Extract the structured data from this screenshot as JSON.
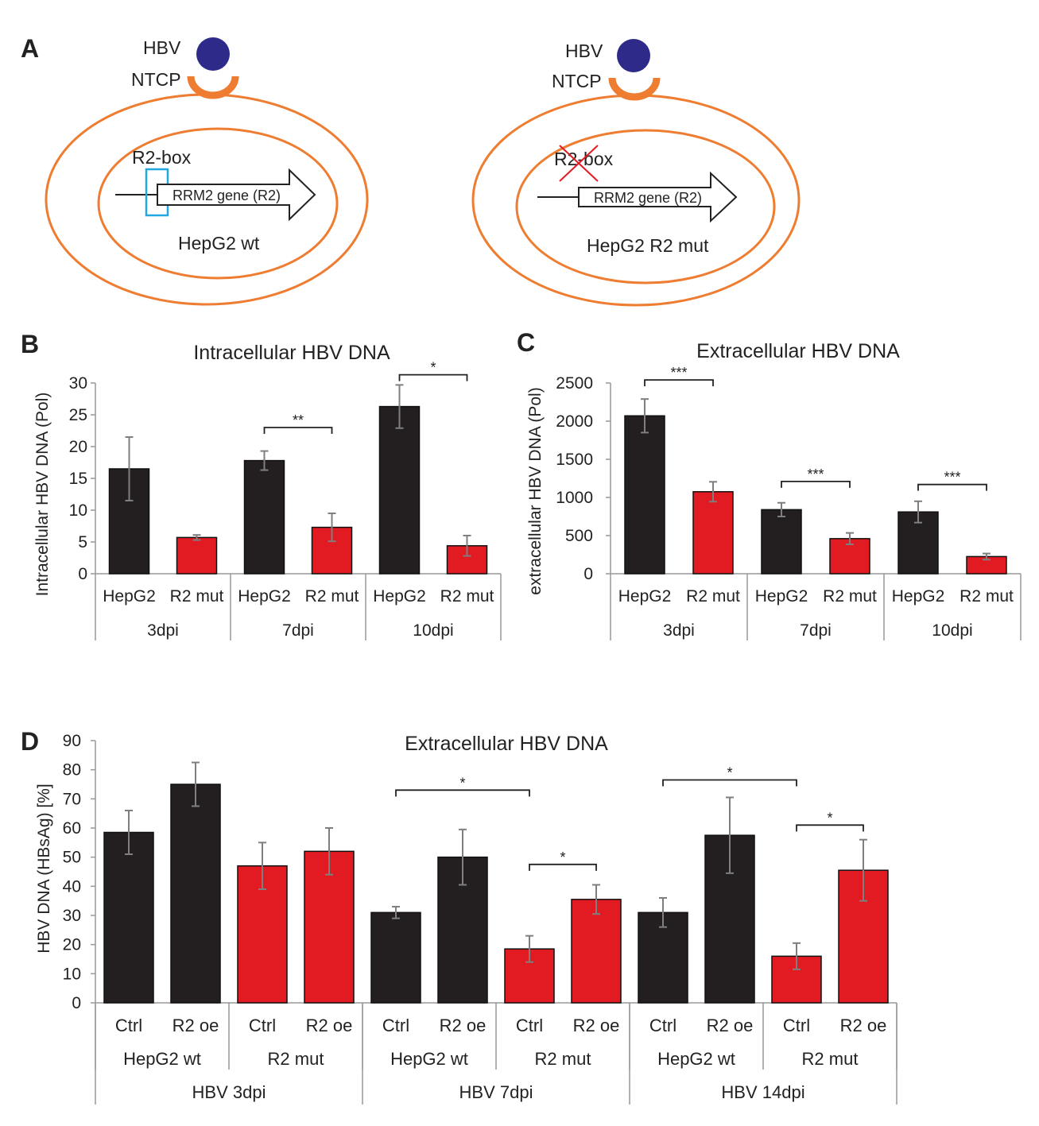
{
  "panel_a": {
    "letter": "A",
    "cells": [
      {
        "hbv": "HBV",
        "ntcp": "NTCP",
        "box": "R2-box",
        "gene": "RRM2 gene (R2)",
        "name": "HepG2 wt"
      },
      {
        "hbv": "HBV",
        "ntcp": "NTCP",
        "box": "R2-box",
        "gene": "RRM2 gene (R2)",
        "name": "HepG2 R2 mut"
      }
    ]
  },
  "colors": {
    "wt": "#231f20",
    "mut": "#e21b23",
    "membrane": "#ee7d31",
    "hbv": "#2e2a8a",
    "box": "#22a8e0",
    "cross": "#e21b23",
    "error": "#7f7f7f"
  },
  "chart_data": [
    {
      "id": "B",
      "letter": "B",
      "type": "bar",
      "title": "Intracellular HBV DNA",
      "ylabel": "Intracellular HBV DNA (Pol)",
      "ylim": [
        0,
        30
      ],
      "yticks": [
        0,
        5,
        10,
        15,
        20,
        25,
        30
      ],
      "bars": [
        {
          "label": "HepG2",
          "value": 16.5,
          "err": 5,
          "color": "wt"
        },
        {
          "label": "R2 mut",
          "value": 5.7,
          "err": 0.4,
          "color": "mut"
        },
        {
          "label": "HepG2",
          "value": 17.8,
          "err": 1.5,
          "color": "wt"
        },
        {
          "label": "R2 mut",
          "value": 7.3,
          "err": 2.2,
          "color": "mut"
        },
        {
          "label": "HepG2",
          "value": 26.3,
          "err": 3.4,
          "color": "wt"
        },
        {
          "label": "R2 mut",
          "value": 4.4,
          "err": 1.6,
          "color": "mut"
        }
      ],
      "groups": [
        {
          "label": "3dpi",
          "bars": [
            0,
            1
          ]
        },
        {
          "label": "7dpi",
          "bars": [
            2,
            3
          ]
        },
        {
          "label": "10dpi",
          "bars": [
            4,
            5
          ]
        }
      ],
      "significance": [
        {
          "from": 2,
          "to": 3,
          "y": 23,
          "text": "**"
        },
        {
          "from": 4,
          "to": 5,
          "y": 31.3,
          "text": "*"
        }
      ]
    },
    {
      "id": "C",
      "letter": "C",
      "type": "bar",
      "title": "Extracellular HBV DNA",
      "ylabel": "extracellular HBV DNA (Pol)",
      "ylim": [
        0,
        2500
      ],
      "yticks": [
        0,
        500,
        1000,
        1500,
        2000,
        2500
      ],
      "bars": [
        {
          "label": "HepG2",
          "value": 2070,
          "err": 220,
          "color": "wt"
        },
        {
          "label": "R2 mut",
          "value": 1075,
          "err": 130,
          "color": "mut"
        },
        {
          "label": "HepG2",
          "value": 840,
          "err": 90,
          "color": "wt"
        },
        {
          "label": "R2 mut",
          "value": 460,
          "err": 75,
          "color": "mut"
        },
        {
          "label": "HepG2",
          "value": 810,
          "err": 140,
          "color": "wt"
        },
        {
          "label": "R2 mut",
          "value": 225,
          "err": 40,
          "color": "mut"
        }
      ],
      "groups": [
        {
          "label": "3dpi",
          "bars": [
            0,
            1
          ]
        },
        {
          "label": "7dpi",
          "bars": [
            2,
            3
          ]
        },
        {
          "label": "10dpi",
          "bars": [
            4,
            5
          ]
        }
      ],
      "significance": [
        {
          "from": 0,
          "to": 1,
          "y": 2540,
          "text": "***"
        },
        {
          "from": 2,
          "to": 3,
          "y": 1210,
          "text": "***"
        },
        {
          "from": 4,
          "to": 5,
          "y": 1170,
          "text": "***"
        }
      ]
    },
    {
      "id": "D",
      "letter": "D",
      "type": "bar",
      "title": "Extracellular HBV DNA",
      "ylabel": "HBV DNA (HBsAg) [%]",
      "ylim": [
        0,
        90
      ],
      "yticks": [
        0,
        10,
        20,
        30,
        40,
        50,
        60,
        70,
        80,
        90
      ],
      "bars": [
        {
          "label": "Ctrl",
          "value": 58.5,
          "err": 7.5,
          "color": "wt"
        },
        {
          "label": "R2 oe",
          "value": 75,
          "err": 7.5,
          "color": "wt"
        },
        {
          "label": "Ctrl",
          "value": 47,
          "err": 8,
          "color": "mut"
        },
        {
          "label": "R2 oe",
          "value": 52,
          "err": 8,
          "color": "mut"
        },
        {
          "label": "Ctrl",
          "value": 31,
          "err": 2,
          "color": "wt"
        },
        {
          "label": "R2 oe",
          "value": 50,
          "err": 9.5,
          "color": "wt"
        },
        {
          "label": "Ctrl",
          "value": 18.5,
          "err": 4.5,
          "color": "mut"
        },
        {
          "label": "R2 oe",
          "value": 35.5,
          "err": 5,
          "color": "mut"
        },
        {
          "label": "Ctrl",
          "value": 31,
          "err": 5,
          "color": "wt"
        },
        {
          "label": "R2 oe",
          "value": 57.5,
          "err": 13,
          "color": "wt"
        },
        {
          "label": "Ctrl",
          "value": 16,
          "err": 4.5,
          "color": "mut"
        },
        {
          "label": "R2 oe",
          "value": 45.5,
          "err": 10.5,
          "color": "mut"
        }
      ],
      "subgroups": [
        {
          "label": "HepG2 wt",
          "bars": [
            0,
            1
          ]
        },
        {
          "label": "R2 mut",
          "bars": [
            2,
            3
          ]
        },
        {
          "label": "HepG2 wt",
          "bars": [
            4,
            5
          ]
        },
        {
          "label": "R2 mut",
          "bars": [
            6,
            7
          ]
        },
        {
          "label": "HepG2 wt",
          "bars": [
            8,
            9
          ]
        },
        {
          "label": "R2 mut",
          "bars": [
            10,
            11
          ]
        }
      ],
      "groups": [
        {
          "label": "HBV 3dpi",
          "bars": [
            0,
            3
          ]
        },
        {
          "label": "HBV 7dpi",
          "bars": [
            4,
            7
          ]
        },
        {
          "label": "HBV 14dpi",
          "bars": [
            8,
            11
          ]
        }
      ],
      "significance": [
        {
          "from": 4,
          "to": 6,
          "y": 73,
          "text": "*"
        },
        {
          "from": 6,
          "to": 7,
          "y": 47.5,
          "text": "*"
        },
        {
          "from": 8,
          "to": 10,
          "y": 76.5,
          "text": "*"
        },
        {
          "from": 10,
          "to": 11,
          "y": 61,
          "text": "*"
        }
      ]
    }
  ]
}
